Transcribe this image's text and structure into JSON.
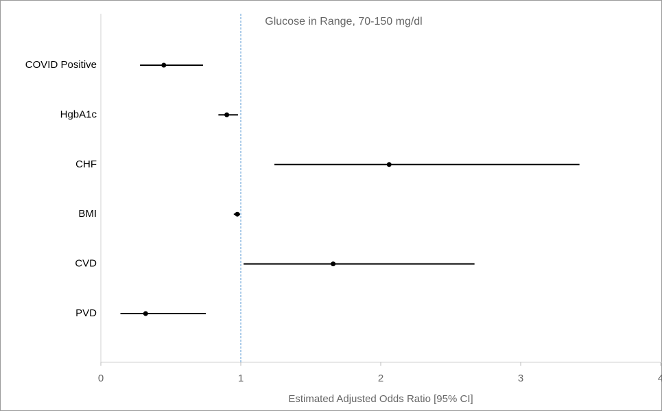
{
  "chart_data": {
    "type": "forest",
    "title": "Glucose in Range, 70-150 mg/dl",
    "x_label": "Estimated Adjusted Odds Ratio [95% CI]",
    "categories": [
      "COVID Positive",
      "HgbA1c",
      "CHF",
      "BMI",
      "CVD",
      "PVD"
    ],
    "values": [
      0.45,
      0.9,
      2.06,
      0.975,
      1.66,
      0.32
    ],
    "lower": [
      0.28,
      0.84,
      1.24,
      0.95,
      1.02,
      0.14
    ],
    "upper": [
      0.73,
      0.98,
      3.42,
      0.995,
      2.67,
      0.75
    ],
    "color": "#000000",
    "reference_line": 1,
    "reference_color": "#5b9bd5",
    "xlim": [
      0,
      4
    ],
    "xticks": [
      0,
      1,
      2,
      3,
      4
    ]
  }
}
